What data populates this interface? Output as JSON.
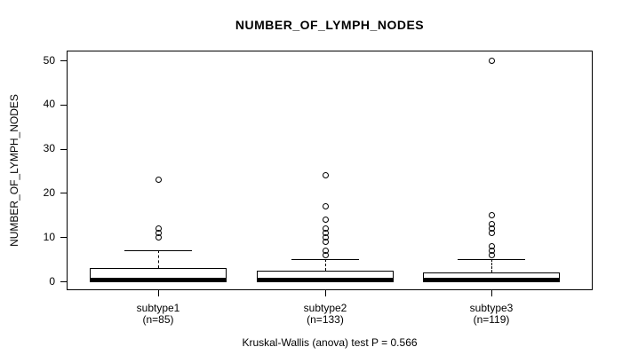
{
  "chart_data": {
    "type": "boxplot",
    "title": "NUMBER_OF_LYMPH_NODES",
    "ylabel": "NUMBER_OF_LYMPH_NODES",
    "xlabel": "",
    "subtitle": "Kruskal-Wallis (anova) test P = 0.566",
    "ylim": [
      0,
      50
    ],
    "yticks": [
      0,
      10,
      20,
      30,
      40,
      50
    ],
    "grid": false,
    "legend": "none",
    "groups": [
      {
        "label": "subtype1",
        "sublabel": "(n=85)",
        "n": 85,
        "min": 0,
        "q1": 0,
        "median": 0,
        "q3": 3,
        "whisker_low": 0,
        "whisker_high": 7,
        "outliers": [
          10,
          11,
          12,
          23
        ]
      },
      {
        "label": "subtype2",
        "sublabel": "(n=133)",
        "n": 133,
        "min": 0,
        "q1": 0,
        "median": 0,
        "q3": 2.5,
        "whisker_low": 0,
        "whisker_high": 5,
        "outliers": [
          6,
          7,
          9,
          10,
          11,
          12,
          14,
          17,
          24
        ]
      },
      {
        "label": "subtype3",
        "sublabel": "(n=119)",
        "n": 119,
        "min": 0,
        "q1": 0,
        "median": 0,
        "q3": 2,
        "whisker_low": 0,
        "whisker_high": 5,
        "outliers": [
          6,
          7,
          8,
          11,
          12,
          13,
          15,
          50
        ]
      }
    ],
    "colors": {
      "background": "#ffffff",
      "line": "#000000",
      "box_fill": "#ffffff",
      "text": "#000000"
    }
  }
}
